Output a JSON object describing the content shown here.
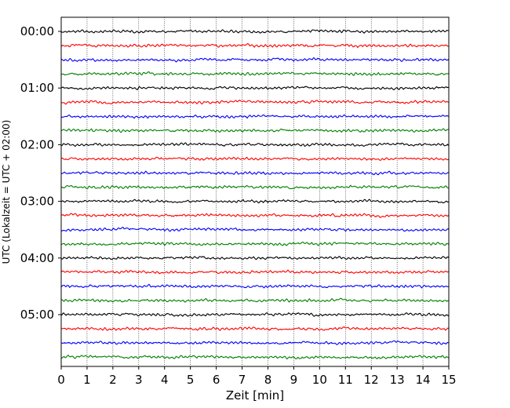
{
  "chart_data": {
    "type": "line",
    "title": "",
    "xlabel": "Zeit  [min]",
    "ylabel": "UTC (Lokalzeit = UTC + 02:00)",
    "xlim": [
      0,
      15
    ],
    "x_ticks": [
      "0",
      "1",
      "2",
      "3",
      "4",
      "5",
      "6",
      "7",
      "8",
      "9",
      "10",
      "11",
      "12",
      "13",
      "14",
      "15"
    ],
    "y_ticks": [
      "00:00",
      "01:00",
      "02:00",
      "03:00",
      "04:00",
      "05:00"
    ],
    "grid": "vertical dotted",
    "trace_interval_min": 15,
    "series_colors": [
      "#000000",
      "#ff0000",
      "#0000ff",
      "#008000"
    ],
    "traces": [
      {
        "start": "00:00",
        "color": "#000000"
      },
      {
        "start": "00:15",
        "color": "#ff0000"
      },
      {
        "start": "00:30",
        "color": "#0000ff"
      },
      {
        "start": "00:45",
        "color": "#008000"
      },
      {
        "start": "01:00",
        "color": "#000000"
      },
      {
        "start": "01:15",
        "color": "#ff0000"
      },
      {
        "start": "01:30",
        "color": "#0000ff"
      },
      {
        "start": "01:45",
        "color": "#008000"
      },
      {
        "start": "02:00",
        "color": "#000000"
      },
      {
        "start": "02:15",
        "color": "#ff0000"
      },
      {
        "start": "02:30",
        "color": "#0000ff"
      },
      {
        "start": "02:45",
        "color": "#008000"
      },
      {
        "start": "03:00",
        "color": "#000000"
      },
      {
        "start": "03:15",
        "color": "#ff0000"
      },
      {
        "start": "03:30",
        "color": "#0000ff"
      },
      {
        "start": "03:45",
        "color": "#008000"
      },
      {
        "start": "04:00",
        "color": "#000000"
      },
      {
        "start": "04:15",
        "color": "#ff0000"
      },
      {
        "start": "04:30",
        "color": "#0000ff"
      },
      {
        "start": "04:45",
        "color": "#008000"
      },
      {
        "start": "05:00",
        "color": "#000000"
      },
      {
        "start": "05:15",
        "color": "#ff0000"
      },
      {
        "start": "05:30",
        "color": "#0000ff"
      },
      {
        "start": "05:45",
        "color": "#008000"
      }
    ]
  }
}
